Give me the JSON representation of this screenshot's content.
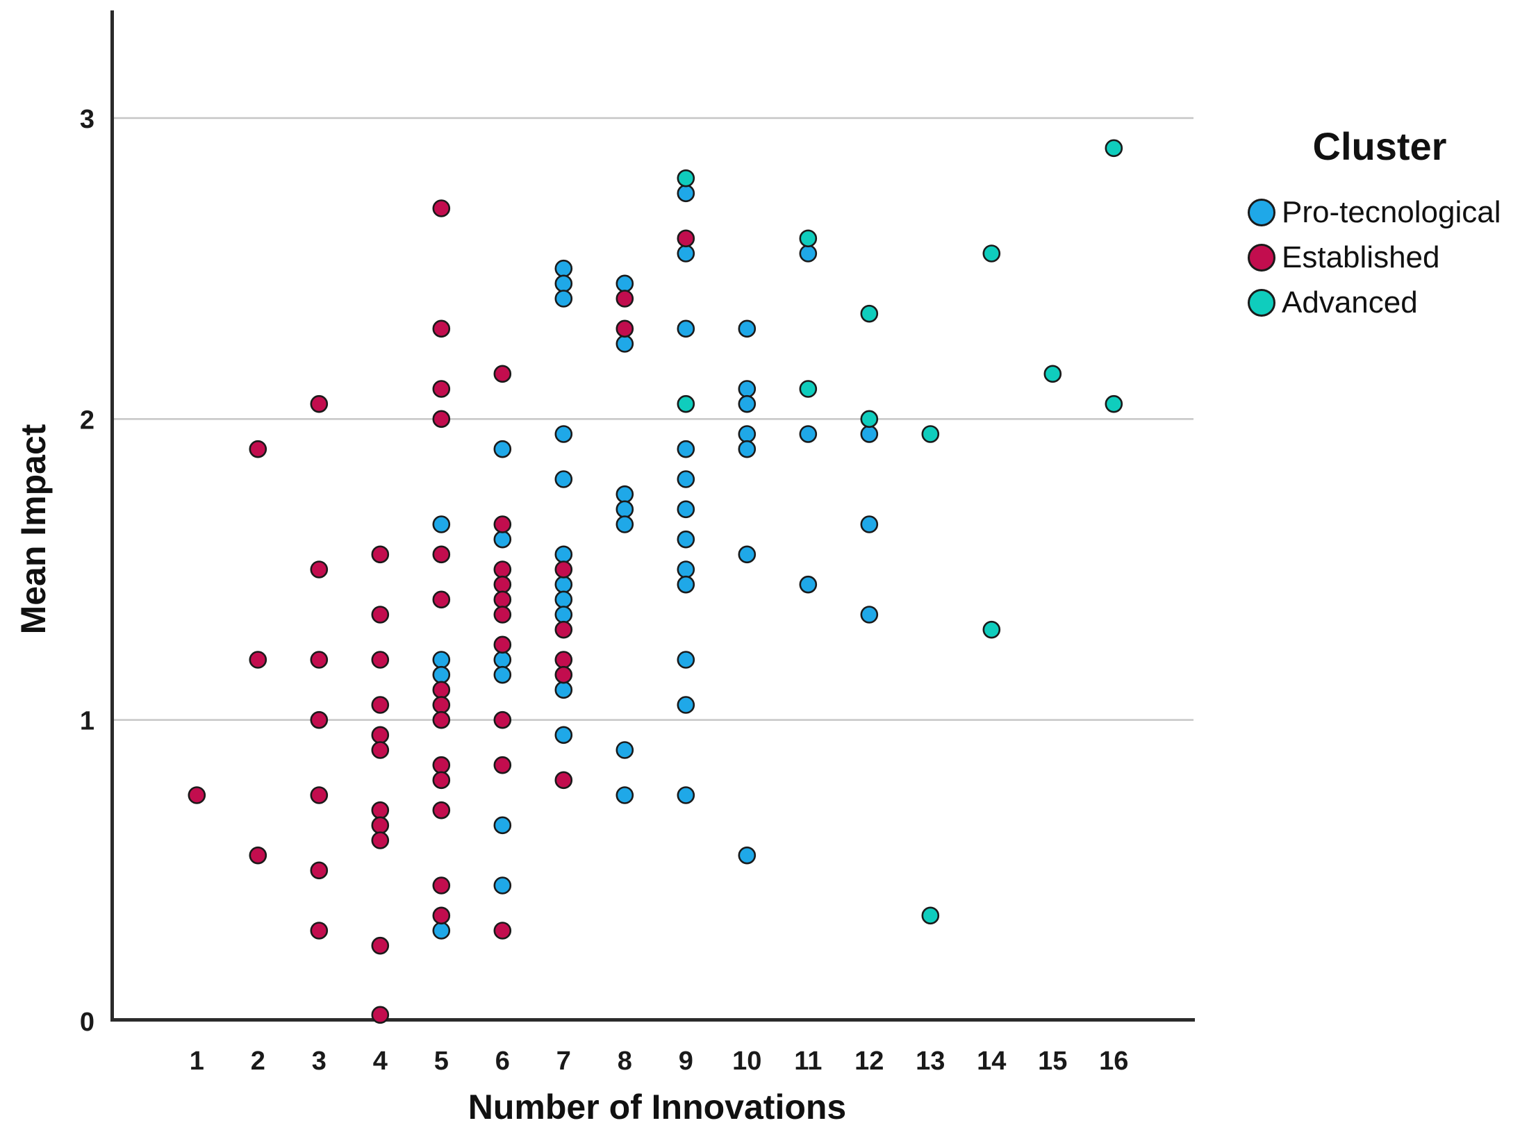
{
  "chart_data": {
    "type": "scatter",
    "title": "",
    "xlabel": "Number of Innovations",
    "ylabel": "Mean Impact",
    "legend": {
      "title": "Cluster",
      "position": "top-right"
    },
    "x_ticks": [
      "1",
      "2",
      "3",
      "4",
      "5",
      "6",
      "7",
      "8",
      "9",
      "10",
      "11",
      "12",
      "13",
      "14",
      "15",
      "16"
    ],
    "y_ticks": [
      "0",
      "1",
      "2",
      "3"
    ],
    "xlim": [
      0,
      17.3
    ],
    "ylim": [
      0,
      3.36
    ],
    "grid": "horizontal-gridlines-at-1-2-3",
    "colors": {
      "background": "#ffffff",
      "gridline": "#c6c6c6",
      "axis": "#2b2b2b",
      "marker_outline": "#1a1a1a",
      "text": "#1a1a1a"
    },
    "series": [
      {
        "name": "Pro-tecnological",
        "color": "#1FA8E8",
        "points": [
          [
            5,
            1.65
          ],
          [
            5,
            1.2
          ],
          [
            5,
            1.15
          ],
          [
            5,
            0.3
          ],
          [
            6,
            1.9
          ],
          [
            6,
            1.6
          ],
          [
            6,
            1.2
          ],
          [
            6,
            1.15
          ],
          [
            6,
            0.65
          ],
          [
            6,
            0.45
          ],
          [
            7,
            2.5
          ],
          [
            7,
            2.45
          ],
          [
            7,
            2.4
          ],
          [
            7,
            1.95
          ],
          [
            7,
            1.8
          ],
          [
            7,
            1.55
          ],
          [
            7,
            1.45
          ],
          [
            7,
            1.4
          ],
          [
            7,
            1.35
          ],
          [
            7,
            1.1
          ],
          [
            7,
            0.95
          ],
          [
            8,
            2.45
          ],
          [
            8,
            2.25
          ],
          [
            8,
            1.75
          ],
          [
            8,
            1.7
          ],
          [
            8,
            1.65
          ],
          [
            8,
            0.9
          ],
          [
            8,
            0.75
          ],
          [
            9,
            2.75
          ],
          [
            9,
            2.55
          ],
          [
            9,
            2.3
          ],
          [
            9,
            1.9
          ],
          [
            9,
            1.8
          ],
          [
            9,
            1.7
          ],
          [
            9,
            1.6
          ],
          [
            9,
            1.5
          ],
          [
            9,
            1.45
          ],
          [
            9,
            1.2
          ],
          [
            9,
            1.05
          ],
          [
            9,
            0.75
          ],
          [
            10,
            2.3
          ],
          [
            10,
            2.1
          ],
          [
            10,
            2.05
          ],
          [
            10,
            1.95
          ],
          [
            10,
            1.9
          ],
          [
            10,
            1.55
          ],
          [
            10,
            0.55
          ],
          [
            11,
            2.55
          ],
          [
            11,
            1.95
          ],
          [
            11,
            1.45
          ],
          [
            12,
            1.95
          ],
          [
            12,
            1.65
          ],
          [
            12,
            1.35
          ]
        ]
      },
      {
        "name": "Established",
        "color": "#C20D4E",
        "points": [
          [
            1,
            0.75
          ],
          [
            2,
            1.9
          ],
          [
            2,
            1.2
          ],
          [
            2,
            0.55
          ],
          [
            3,
            2.05
          ],
          [
            3,
            1.5
          ],
          [
            3,
            1.2
          ],
          [
            3,
            1.0
          ],
          [
            3,
            0.75
          ],
          [
            3,
            0.5
          ],
          [
            3,
            0.3
          ],
          [
            4,
            1.55
          ],
          [
            4,
            1.35
          ],
          [
            4,
            1.2
          ],
          [
            4,
            1.05
          ],
          [
            4,
            0.95
          ],
          [
            4,
            0.9
          ],
          [
            4,
            0.7
          ],
          [
            4,
            0.65
          ],
          [
            4,
            0.6
          ],
          [
            4,
            0.25
          ],
          [
            4,
            0.02
          ],
          [
            5,
            2.7
          ],
          [
            5,
            2.3
          ],
          [
            5,
            2.1
          ],
          [
            5,
            2.0
          ],
          [
            5,
            1.55
          ],
          [
            5,
            1.4
          ],
          [
            5,
            1.1
          ],
          [
            5,
            1.05
          ],
          [
            5,
            1.0
          ],
          [
            5,
            0.85
          ],
          [
            5,
            0.8
          ],
          [
            5,
            0.7
          ],
          [
            5,
            0.45
          ],
          [
            5,
            0.35
          ],
          [
            6,
            2.15
          ],
          [
            6,
            1.65
          ],
          [
            6,
            1.5
          ],
          [
            6,
            1.45
          ],
          [
            6,
            1.4
          ],
          [
            6,
            1.35
          ],
          [
            6,
            1.25
          ],
          [
            6,
            1.0
          ],
          [
            6,
            0.85
          ],
          [
            6,
            0.3
          ],
          [
            7,
            1.5
          ],
          [
            7,
            1.3
          ],
          [
            7,
            1.2
          ],
          [
            7,
            1.15
          ],
          [
            7,
            0.8
          ],
          [
            8,
            2.4
          ],
          [
            8,
            2.3
          ],
          [
            9,
            2.6
          ]
        ]
      },
      {
        "name": "Advanced",
        "color": "#0FCDBD",
        "points": [
          [
            9,
            2.8
          ],
          [
            9,
            2.05
          ],
          [
            11,
            2.6
          ],
          [
            11,
            2.1
          ],
          [
            12,
            2.35
          ],
          [
            12,
            2.0
          ],
          [
            13,
            1.95
          ],
          [
            13,
            0.35
          ],
          [
            14,
            2.55
          ],
          [
            14,
            1.3
          ],
          [
            15,
            2.15
          ],
          [
            16,
            2.9
          ],
          [
            16,
            2.05
          ]
        ]
      }
    ]
  }
}
